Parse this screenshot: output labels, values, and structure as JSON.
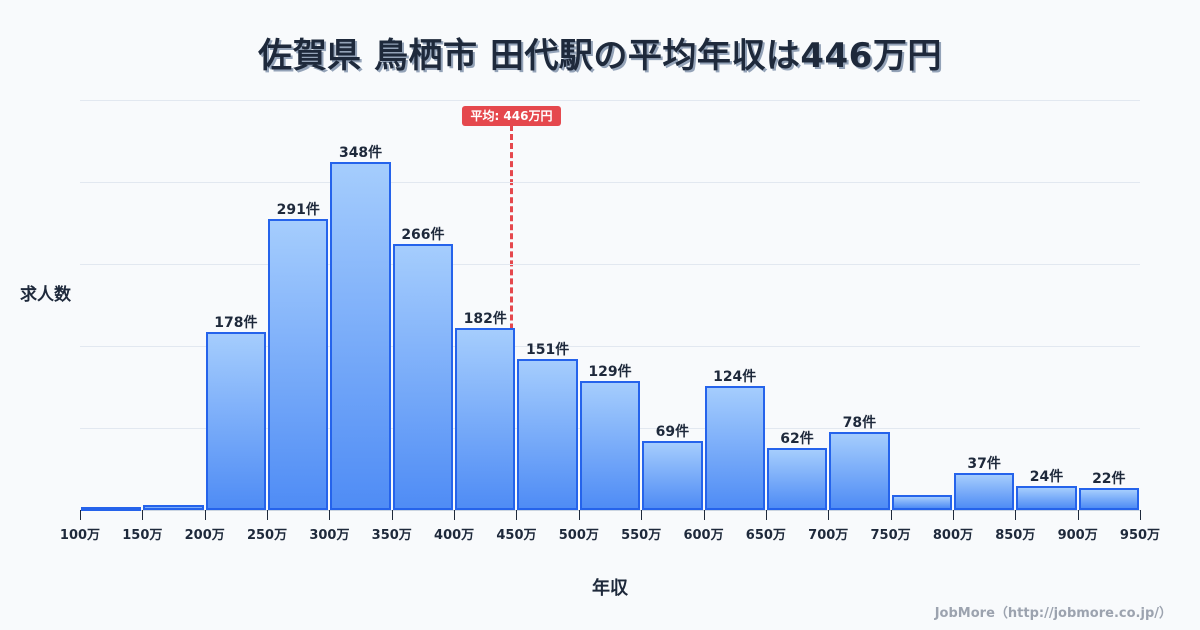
{
  "header": {
    "title": "佐賀県 鳥栖市 田代駅の平均年収は446万円"
  },
  "average_badge": "平均: 446万円",
  "axis": {
    "ylabel": "求人数",
    "xlabel": "年収"
  },
  "footer": {
    "credit": "JobMore（http://jobmore.co.jp/）"
  },
  "colors": {
    "bar_top": "#a5cdfd",
    "bar_bottom": "#4f8cf5",
    "bar_border": "#2563eb",
    "average_line": "#e5484d",
    "text": "#1e293b",
    "background": "#f8fafc"
  },
  "chart_data": {
    "type": "bar",
    "title": "佐賀県 鳥栖市 田代駅の平均年収は446万円",
    "xlabel": "年収",
    "ylabel": "求人数",
    "x_ticks": [
      "100万",
      "150万",
      "200万",
      "250万",
      "300万",
      "350万",
      "400万",
      "450万",
      "500万",
      "550万",
      "600万",
      "650万",
      "700万",
      "750万",
      "800万",
      "850万",
      "900万",
      "950万"
    ],
    "categories": [
      "100-150万",
      "150-200万",
      "200-250万",
      "250-300万",
      "300-350万",
      "350-400万",
      "400-450万",
      "450-500万",
      "500-550万",
      "550-600万",
      "600-650万",
      "650-700万",
      "700-750万",
      "750-800万",
      "800-850万",
      "850-900万",
      "900-950万"
    ],
    "values": [
      2,
      5,
      178,
      291,
      348,
      266,
      182,
      151,
      129,
      69,
      124,
      62,
      78,
      15,
      37,
      24,
      22
    ],
    "labels": [
      "",
      "",
      "178件",
      "291件",
      "348件",
      "266件",
      "182件",
      "151件",
      "129件",
      "69件",
      "124件",
      "62件",
      "78件",
      "",
      "37件",
      "24件",
      "22件"
    ],
    "average": 446,
    "average_label": "平均: 446万円",
    "ylim": [
      0,
      410
    ],
    "grid": true,
    "legend": "none"
  }
}
